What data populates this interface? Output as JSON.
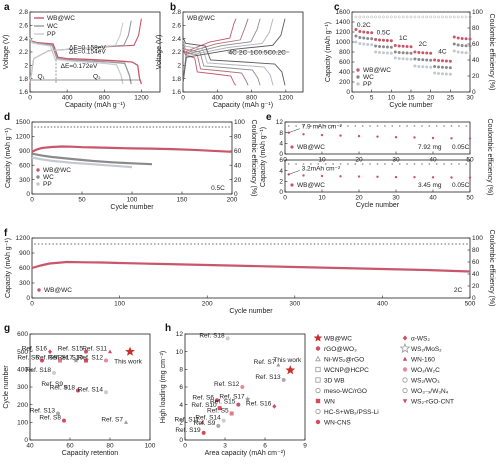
{
  "chart_data": [
    {
      "panel": "a",
      "type": "line",
      "xlabel": "Capacity (mAh g⁻¹)",
      "ylabel": "Voltage (V)",
      "xlim": [
        0,
        1400
      ],
      "ylim": [
        1.6,
        2.8
      ],
      "xticks": [
        0,
        400,
        800,
        1200
      ],
      "yticks": [
        1.6,
        1.8,
        2.0,
        2.2,
        2.4,
        2.6,
        2.8
      ],
      "legend_location": "top-left",
      "series": [
        {
          "name": "WB@WC",
          "color": "#c9566b",
          "x": [
            0,
            20,
            80,
            250,
            300,
            400,
            600,
            900,
            1100,
            1160,
            1180,
            1200
          ],
          "y": [
            2.43,
            2.36,
            2.34,
            2.32,
            2.12,
            2.1,
            2.09,
            2.07,
            2.05,
            2.0,
            1.8,
            1.72
          ]
        },
        {
          "name": "WC",
          "color": "#999999",
          "x": [
            0,
            20,
            80,
            240,
            290,
            400,
            600,
            850,
            1020,
            1070,
            1090
          ],
          "y": [
            2.42,
            2.35,
            2.33,
            2.3,
            2.1,
            2.08,
            2.07,
            2.05,
            2.03,
            1.85,
            1.72
          ]
        },
        {
          "name": "PP",
          "color": "#c8cdd6",
          "x": [
            0,
            20,
            80,
            220,
            270,
            400,
            600,
            800,
            930,
            980,
            1000
          ],
          "y": [
            2.41,
            2.34,
            2.32,
            2.29,
            2.09,
            2.07,
            2.05,
            2.03,
            2.01,
            1.85,
            1.72
          ]
        }
      ],
      "annotations": [
        "ΔE=0.158eV",
        "ΔE=0.154eV",
        "ΔE=0.172eV",
        "Q₁",
        "Q₂"
      ]
    },
    {
      "panel": "b",
      "type": "line",
      "xlabel": "Capacity (mAh g⁻¹)",
      "ylabel": "Voltage (V)",
      "xlim": [
        0,
        1400
      ],
      "ylim": [
        1.6,
        2.8
      ],
      "xticks": [
        0,
        400,
        800,
        1200
      ],
      "yticks": [
        1.6,
        1.8,
        2.0,
        2.2,
        2.4,
        2.6,
        2.8
      ],
      "legend_title": "WB@WC",
      "series": [
        {
          "name": "4C",
          "end": 620
        },
        {
          "name": "2C",
          "end": 760
        },
        {
          "name": "1C",
          "end": 900
        },
        {
          "name": "0.5C",
          "end": 1050
        },
        {
          "name": "0.2C",
          "end": 1190
        }
      ]
    },
    {
      "panel": "c",
      "type": "scatter",
      "xlabel": "Cycle number",
      "ylabel": "Capacity (mAh g⁻¹)",
      "y2label": "Coulombic efficiency (%)",
      "xlim": [
        0,
        30
      ],
      "ylim": [
        0,
        1600
      ],
      "y2lim": [
        0,
        100
      ],
      "xticks": [
        0,
        5,
        10,
        15,
        20,
        25,
        30
      ],
      "yticks": [
        0,
        200,
        400,
        600,
        800,
        1000,
        1200,
        1400,
        1600
      ],
      "y2ticks": [
        0,
        20,
        40,
        60,
        80,
        100
      ],
      "rate_labels": [
        "0.2C",
        "0.5C",
        "1C",
        "2C",
        "4C"
      ],
      "legend_location": "bottom-left",
      "series": [
        {
          "name": "WB@WC",
          "color": "#c9566b",
          "x": [
            1,
            2,
            3,
            4,
            5,
            6,
            7,
            8,
            9,
            10,
            11,
            12,
            13,
            14,
            15,
            16,
            17,
            18,
            19,
            20,
            21,
            22,
            23,
            24,
            25,
            26,
            27,
            28,
            29,
            30
          ],
          "y": [
            1250,
            1210,
            1200,
            1190,
            1185,
            1050,
            1040,
            1035,
            1030,
            1025,
            930,
            920,
            915,
            910,
            905,
            800,
            790,
            785,
            780,
            775,
            640,
            630,
            625,
            620,
            615,
            1100,
            1080,
            1070,
            1065,
            1060
          ]
        },
        {
          "name": "WC",
          "color": "#8a8a8a",
          "x": [
            1,
            2,
            3,
            4,
            5,
            6,
            7,
            8,
            9,
            10,
            11,
            12,
            13,
            14,
            15,
            16,
            17,
            18,
            19,
            20,
            21,
            22,
            23,
            24,
            25,
            26,
            27,
            28,
            29,
            30
          ],
          "y": [
            1120,
            1090,
            1080,
            1070,
            1065,
            920,
            910,
            905,
            900,
            895,
            800,
            790,
            785,
            780,
            775,
            660,
            650,
            645,
            640,
            635,
            510,
            500,
            495,
            490,
            485,
            960,
            940,
            930,
            925,
            920
          ]
        },
        {
          "name": "PP",
          "color": "#c3c8d2",
          "x": [
            1,
            2,
            3,
            4,
            5,
            6,
            7,
            8,
            9,
            10,
            11,
            12,
            13,
            14,
            15,
            16,
            17,
            18,
            19,
            20,
            21,
            22,
            23,
            24,
            25,
            26,
            27,
            28,
            29,
            30
          ],
          "y": [
            1000,
            970,
            960,
            950,
            945,
            800,
            790,
            785,
            780,
            775,
            680,
            670,
            665,
            660,
            655,
            520,
            510,
            505,
            500,
            495,
            380,
            370,
            365,
            360,
            355,
            820,
            800,
            790,
            785,
            780
          ]
        }
      ]
    },
    {
      "panel": "d",
      "type": "scatter",
      "xlabel": "Cycle number",
      "ylabel": "Capacity (mAh g⁻¹)",
      "y2label": "Coulombic efficiency (%)",
      "xlim": [
        0,
        200
      ],
      "ylim": [
        0,
        1500
      ],
      "y2lim": [
        0,
        100
      ],
      "xticks": [
        0,
        50,
        100,
        150,
        200
      ],
      "yticks": [
        0,
        300,
        600,
        900,
        1200,
        1500
      ],
      "y2ticks": [
        0,
        20,
        40,
        60,
        80,
        100
      ],
      "rate": "0.5C",
      "legend_location": "bottom-left",
      "series": [
        {
          "name": "WB@WC",
          "color": "#c9566b",
          "x": [
            0,
            5,
            10,
            20,
            30,
            40,
            50,
            60,
            80,
            100,
            120,
            140,
            160,
            180,
            200
          ],
          "y": [
            880,
            930,
            960,
            980,
            990,
            985,
            975,
            970,
            960,
            950,
            945,
            935,
            920,
            900,
            880
          ]
        },
        {
          "name": "WC",
          "color": "#8a8a8a",
          "x": [
            0,
            10,
            20,
            40,
            60,
            80,
            100,
            120
          ],
          "y": [
            840,
            800,
            770,
            730,
            690,
            660,
            640,
            620
          ]
        },
        {
          "name": "PP",
          "color": "#c3c8d2",
          "x": [
            0,
            10,
            20,
            40,
            60,
            80,
            100
          ],
          "y": [
            760,
            720,
            690,
            650,
            620,
            590,
            560
          ]
        }
      ]
    },
    {
      "panel": "e-top",
      "type": "scatter",
      "xlabel": "Cycle number",
      "ylabel": "Capacity (mAh g⁻¹)",
      "y2label": "Coulombic efficiency (%)",
      "xlim": [
        0,
        50
      ],
      "ylim": [
        0,
        12
      ],
      "xticks": [
        0,
        10,
        20,
        30,
        40,
        50
      ],
      "yticks": [
        0,
        4,
        8,
        12
      ],
      "area_loading": "7.9 mAh cm⁻²",
      "loading_info": "7.92 mg",
      "rate": "0.05C",
      "series": [
        {
          "name": "WB@WC",
          "color": "#c9566b",
          "x": [
            1,
            5,
            10,
            15,
            20,
            25,
            30,
            35,
            40,
            45,
            50
          ],
          "y": [
            8.0,
            7.4,
            7.1,
            6.9,
            6.7,
            6.5,
            6.3,
            6.2,
            6.0,
            5.9,
            5.8
          ]
        }
      ]
    },
    {
      "panel": "e-bottom",
      "type": "scatter",
      "xlabel": "Cycle number",
      "ylabel": "Capacity (mAh g⁻¹)",
      "xlim": [
        0,
        50
      ],
      "ylim": [
        0,
        6
      ],
      "xticks": [
        0,
        10,
        20,
        30,
        40,
        50
      ],
      "yticks": [
        0,
        2,
        4,
        6
      ],
      "area_loading": "3.2mAh cm⁻²",
      "loading_info": "3.45 mg",
      "rate": "0.05C",
      "series": [
        {
          "name": "WB@WC",
          "color": "#c9566b",
          "x": [
            1,
            5,
            10,
            15,
            20,
            25,
            30,
            35,
            40,
            45,
            50
          ],
          "y": [
            3.3,
            3.1,
            3.0,
            2.95,
            2.9,
            2.85,
            2.8,
            2.78,
            2.75,
            2.72,
            2.7
          ]
        }
      ]
    },
    {
      "panel": "f",
      "type": "scatter",
      "xlabel": "Cycle number",
      "ylabel": "Capacity (mAh g⁻¹)",
      "y2label": "Coulombic efficiency (%)",
      "xlim": [
        0,
        500
      ],
      "ylim": [
        0,
        1200
      ],
      "y2lim": [
        0,
        100
      ],
      "xticks": [
        0,
        100,
        200,
        300,
        400,
        500
      ],
      "yticks": [
        0,
        300,
        600,
        900,
        1200
      ],
      "y2ticks": [
        0,
        20,
        40,
        60,
        80,
        100
      ],
      "rate": "2C",
      "series": [
        {
          "name": "WB@WC",
          "color": "#c9566b",
          "x": [
            0,
            10,
            20,
            40,
            60,
            80,
            100,
            150,
            200,
            250,
            300,
            350,
            400,
            450,
            500
          ],
          "y": [
            600,
            650,
            690,
            720,
            715,
            710,
            700,
            680,
            660,
            640,
            620,
            600,
            580,
            560,
            530
          ]
        }
      ]
    },
    {
      "panel": "g",
      "type": "scatter",
      "xlabel": "Capacity retention",
      "ylabel": "Cycle number",
      "xlim": [
        40,
        100
      ],
      "ylim": [
        0,
        600
      ],
      "xticks": [
        40,
        60,
        80,
        100
      ],
      "yticks": [
        0,
        100,
        200,
        300,
        400,
        500,
        600
      ],
      "points": [
        {
          "label": "Ref. S16",
          "x": 50,
          "y": 500,
          "symbol": "diamond",
          "color": "#d34b5d"
        },
        {
          "label": "Ref. S6",
          "x": 46,
          "y": 450,
          "symbol": "circle",
          "color": "#d34b5d"
        },
        {
          "label": "Ref. S5",
          "x": 55,
          "y": 450,
          "symbol": "square",
          "color": "#e07a8a"
        },
        {
          "label": "Ref. S15",
          "x": 68,
          "y": 500,
          "symbol": "circle",
          "color": "#c9566b"
        },
        {
          "label": "Ref. S11",
          "x": 80,
          "y": 500,
          "symbol": "triangle",
          "color": "#d34b5d"
        },
        {
          "label": "Ref. S17",
          "x": 63,
          "y": 450,
          "symbol": "star",
          "color": "#999999"
        },
        {
          "label": "Ref. S10",
          "x": 68,
          "y": 450,
          "symbol": "square",
          "color": "#d34b5d"
        },
        {
          "label": "Ref. S12",
          "x": 78,
          "y": 450,
          "symbol": "circle",
          "color": "#e58a99"
        },
        {
          "label": "Ref. S18",
          "x": 52,
          "y": 380,
          "symbol": "circle",
          "color": "#cccccc"
        },
        {
          "label": "Ref. S9",
          "x": 58,
          "y": 300,
          "symbol": "circle",
          "color": "#aaaaaa"
        },
        {
          "label": "Ref. S18",
          "x": 64,
          "y": 280,
          "symbol": "circle",
          "color": "#d34b5d"
        },
        {
          "label": "Ref. S14",
          "x": 78,
          "y": 270,
          "symbol": "circle",
          "color": "#cccccc"
        },
        {
          "label": "Ref. S13",
          "x": 54,
          "y": 150,
          "symbol": "circle",
          "color": "#aaaaaa"
        },
        {
          "label": "Ref. S8",
          "x": 57,
          "y": 110,
          "symbol": "circle",
          "color": "#d34b5d"
        },
        {
          "label": "Ref. S7",
          "x": 88,
          "y": 100,
          "symbol": "triangle",
          "color": "#999999"
        },
        {
          "label": "This work",
          "x": 90,
          "y": 500,
          "symbol": "star",
          "color": "#c9302c"
        }
      ]
    },
    {
      "panel": "h",
      "type": "scatter",
      "xlabel": "Area capacity (mAh cm⁻²)",
      "ylabel": "High loading (mg cm⁻²)",
      "xlim": [
        0,
        9
      ],
      "ylim": [
        0,
        12
      ],
      "xticks": [
        0,
        3,
        6,
        9
      ],
      "yticks": [
        0,
        2,
        4,
        6,
        8,
        10,
        12
      ],
      "points": [
        {
          "label": "Ref. S18",
          "x": 3.2,
          "y": 11.5,
          "symbol": "circle",
          "color": "#cccccc"
        },
        {
          "label": "Ref. S7",
          "x": 7.0,
          "y": 8.5,
          "symbol": "triangle",
          "color": "#999999"
        },
        {
          "label": "This work",
          "x": 7.9,
          "y": 7.9,
          "symbol": "star",
          "color": "#c9302c"
        },
        {
          "label": "Ref. S13",
          "x": 7.4,
          "y": 6.8,
          "symbol": "circle",
          "color": "#aaaaaa"
        },
        {
          "label": "Ref. S12",
          "x": 4.3,
          "y": 6.0,
          "symbol": "circle",
          "color": "#e58a99"
        },
        {
          "label": "Ref. S17",
          "x": 4.7,
          "y": 4.6,
          "symbol": "star",
          "color": "#999999"
        },
        {
          "label": "Ref. S6",
          "x": 2.4,
          "y": 4.5,
          "symbol": "circle",
          "color": "#d34b5d"
        },
        {
          "label": "Ref. S10",
          "x": 2.6,
          "y": 3.6,
          "symbol": "square",
          "color": "#d34b5d"
        },
        {
          "label": "Ref. S15",
          "x": 4.0,
          "y": 4.0,
          "symbol": "circle",
          "color": "#c9566b"
        },
        {
          "label": "Ref. S16",
          "x": 6.7,
          "y": 3.8,
          "symbol": "diamond",
          "color": "#d34b5d"
        },
        {
          "label": "Ref. S5",
          "x": 3.5,
          "y": 3.0,
          "symbol": "square",
          "color": "#e07a8a"
        },
        {
          "label": "Ref. S14",
          "x": 2.9,
          "y": 2.2,
          "symbol": "circle",
          "color": "#cccccc"
        },
        {
          "label": "Ref. S11",
          "x": 1.3,
          "y": 2.0,
          "symbol": "triangle",
          "color": "#d34b5d"
        },
        {
          "label": "Ref. S9",
          "x": 2.5,
          "y": 1.6,
          "symbol": "circle",
          "color": "#aaaaaa"
        },
        {
          "label": "Ref. S19",
          "x": 1.4,
          "y": 0.8,
          "symbol": "circle",
          "color": "#d34b5d"
        }
      ]
    }
  ],
  "legend_h": [
    {
      "label": "WB@WC",
      "symbol": "star",
      "color": "#c9302c"
    },
    {
      "label": "rGO@WO₃",
      "symbol": "circle",
      "color": "#d34b5d"
    },
    {
      "label": "Ni-WS₂@rGO",
      "symbol": "triangle-open",
      "color": "#999999"
    },
    {
      "label": "WCNP@HCPC",
      "symbol": "square-open",
      "color": "#999999"
    },
    {
      "label": "3D WB",
      "symbol": "square-open",
      "color": "#999999"
    },
    {
      "label": "meso-WC/rGO",
      "symbol": "circle-open",
      "color": "#999999"
    },
    {
      "label": "WN",
      "symbol": "square",
      "color": "#d34b5d"
    },
    {
      "label": "HC-S+WB₂/PSS-Li",
      "symbol": "circle-open",
      "color": "#999999"
    },
    {
      "label": "WN-CNS",
      "symbol": "circle",
      "color": "#d34b5d"
    },
    {
      "label": "α-WS₂",
      "symbol": "diamond",
      "color": "#d34b5d"
    },
    {
      "label": "WS₂/MoS₂",
      "symbol": "star-open",
      "color": "#999999"
    },
    {
      "label": "WN-160",
      "symbol": "triangle",
      "color": "#d34b5d"
    },
    {
      "label": "WO₂/W₂C",
      "symbol": "circle",
      "color": "#e58a99"
    },
    {
      "label": "WS₂/WO₃",
      "symbol": "circle-open",
      "color": "#999999"
    },
    {
      "label": "WO₃₋ₓ/W₃N₄",
      "symbol": "circle-open",
      "color": "#999999"
    },
    {
      "label": "WS₂-rGO-CNT",
      "symbol": "triangle-down",
      "color": "#d34b5d"
    }
  ]
}
